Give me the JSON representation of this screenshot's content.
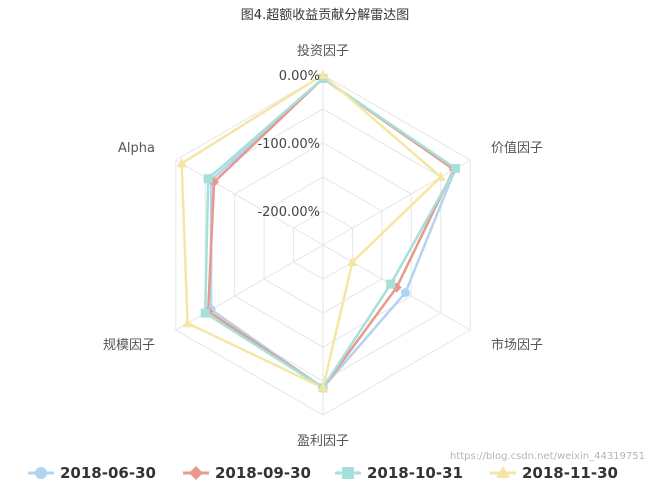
{
  "chart_data": {
    "type": "radar",
    "title": "图4.超额收益贡献分解雷达图",
    "axes": [
      "投资因子",
      "价值因子",
      "市场因子",
      "盈利因子",
      "规模因子",
      "Alpha"
    ],
    "tick_labels": [
      "0.00%",
      "-100.00%",
      "-200.00%"
    ],
    "tick_values": [
      0,
      -100,
      -200
    ],
    "range": [
      -250,
      0
    ],
    "grid": true,
    "legend_position": "bottom",
    "series": [
      {
        "name": "2018-06-30",
        "color": "#b3d4f0",
        "marker": "circle",
        "values": [
          -5,
          -25,
          -110,
          -40,
          -60,
          -60
        ]
      },
      {
        "name": "2018-09-30",
        "color": "#e8998d",
        "marker": "diamond",
        "values": [
          -5,
          -28,
          -125,
          -40,
          -55,
          -65
        ]
      },
      {
        "name": "2018-10-31",
        "color": "#a6e0d8",
        "marker": "square",
        "values": [
          -5,
          -25,
          -135,
          -40,
          -50,
          -55
        ]
      },
      {
        "name": "2018-11-30",
        "color": "#f5e6a6",
        "marker": "triangle",
        "values": [
          0,
          -50,
          -200,
          -40,
          -20,
          -10
        ]
      }
    ]
  },
  "watermark": "https://blog.csdn.net/weixin_44319751"
}
